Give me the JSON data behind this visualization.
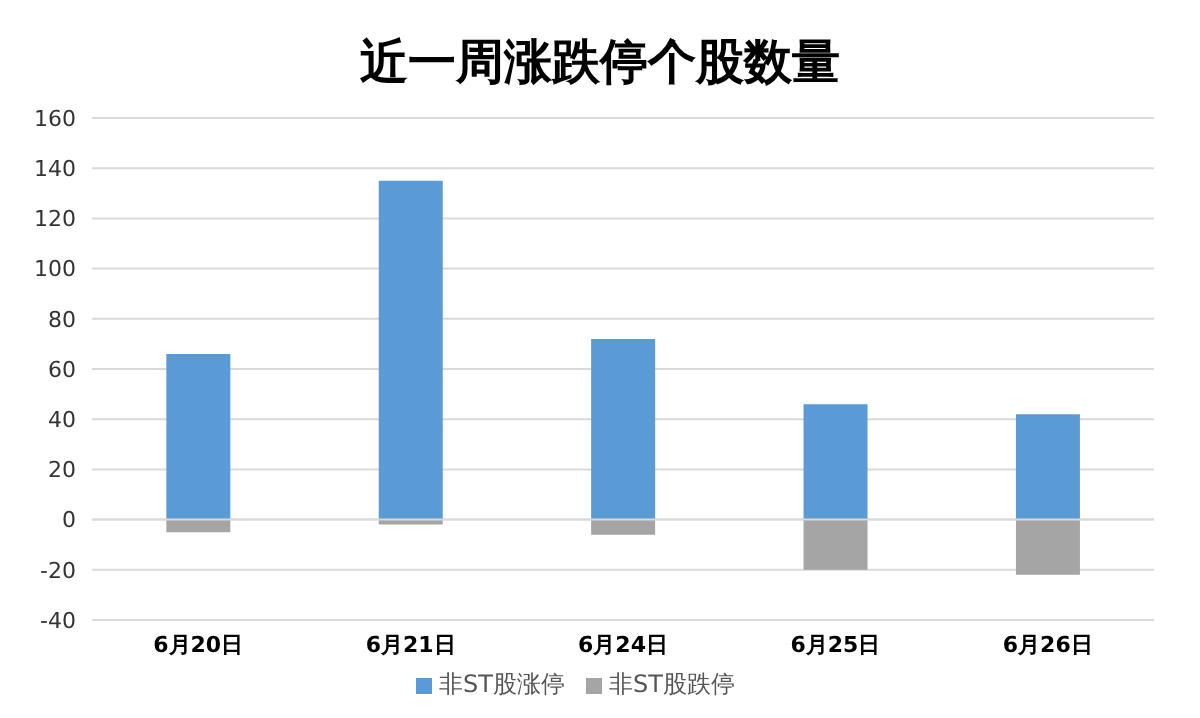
{
  "chart_data": {
    "type": "bar",
    "title": "近一周涨跌停个股数量",
    "categories": [
      "6月20日",
      "6月21日",
      "6月24日",
      "6月25日",
      "6月26日"
    ],
    "stacked": true,
    "series": [
      {
        "name": "非ST股涨停",
        "color": "#5b9bd5",
        "values": [
          66,
          135,
          72,
          46,
          42
        ]
      },
      {
        "name": "非ST股跌停",
        "color": "#a5a5a5",
        "values": [
          -5,
          -2,
          -6,
          -20,
          -22
        ]
      }
    ],
    "ylim": [
      -40,
      160
    ],
    "yticks": [
      -40,
      -20,
      0,
      20,
      40,
      60,
      80,
      100,
      120,
      140,
      160
    ],
    "grid": "y",
    "legend": "bottom"
  }
}
